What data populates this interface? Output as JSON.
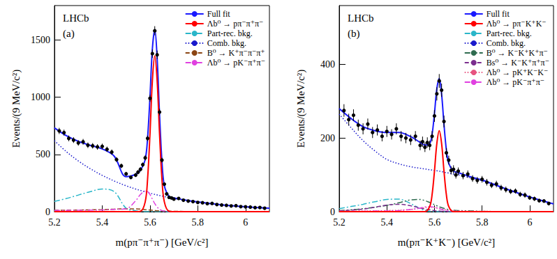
{
  "chart_data": [
    {
      "type": "scatter",
      "title": "(a)",
      "annotations": [
        "LHCb"
      ],
      "xlabel": "m(pπ⁻π⁺π⁻) [GeV/c²]",
      "ylabel": "Events/(9 MeV/c²)",
      "xlim": [
        5.2,
        6.1
      ],
      "xticks": [
        5.2,
        5.4,
        5.6,
        5.8,
        6
      ],
      "ylim": [
        0,
        1800
      ],
      "yticks": [
        0,
        500,
        1000,
        1500
      ],
      "grid": false,
      "legend": "upper right",
      "x": [
        5.2,
        5.25,
        5.3,
        5.35,
        5.4,
        5.45,
        5.5,
        5.54,
        5.56,
        5.58,
        5.59,
        5.6,
        5.61,
        5.62,
        5.63,
        5.64,
        5.65,
        5.66,
        5.68,
        5.7,
        5.75,
        5.8,
        5.9,
        6,
        6.1
      ],
      "series": [
        {
          "type": "scatter",
          "color": "#000000",
          "marker": "circle",
          "x": [
            5.22,
            5.24,
            5.26,
            5.28,
            5.3,
            5.32,
            5.34,
            5.36,
            5.38,
            5.4,
            5.42,
            5.44,
            5.46,
            5.48,
            5.5,
            5.52,
            5.54,
            5.55,
            5.56,
            5.57,
            5.58,
            5.59,
            5.6,
            5.61,
            5.62,
            5.63,
            5.64,
            5.65,
            5.66,
            5.67,
            5.68,
            5.69,
            5.7,
            5.72,
            5.74,
            5.76,
            5.78,
            5.8,
            5.82,
            5.84,
            5.86,
            5.88,
            5.9,
            5.92,
            5.94,
            5.96,
            5.98,
            6,
            6.02,
            6.04,
            6.06,
            6.08
          ],
          "values": [
            705,
            690,
            640,
            625,
            600,
            610,
            580,
            575,
            565,
            570,
            545,
            520,
            455,
            400,
            330,
            300,
            320,
            345,
            370,
            410,
            470,
            640,
            990,
            1380,
            1580,
            1370,
            870,
            450,
            240,
            155,
            125,
            120,
            110,
            115,
            100,
            92,
            88,
            80,
            78,
            70,
            72,
            62,
            58,
            55,
            50,
            52,
            44,
            42,
            40,
            35,
            36,
            30
          ],
          "errors": [
            27,
            26,
            25,
            25,
            24,
            25,
            24,
            24,
            24,
            24,
            23,
            23,
            21,
            20,
            18,
            17,
            18,
            19,
            19,
            20,
            22,
            25,
            31,
            37,
            40,
            37,
            29,
            21,
            15,
            12,
            11,
            11,
            10,
            11,
            10,
            10,
            9,
            9,
            9,
            8,
            8,
            8,
            8,
            7,
            7,
            7,
            7,
            6,
            6,
            6,
            6,
            5
          ]
        },
        {
          "name": "Full fit",
          "type": "line",
          "color": "#1a1aff",
          "line_style": "solid",
          "values": [
            732,
            663,
            614,
            579,
            548,
            485,
            306,
            326,
            362,
            457,
            645,
            1006,
            1422,
            1591,
            1338,
            848,
            440,
            228,
            133,
            120,
            100,
            85,
            60,
            43,
            31
          ]
        },
        {
          "name": "Λb⁰ → pπ⁻π⁺π⁻",
          "type": "line",
          "color": "#ff0000",
          "line_style": "solid",
          "values": [
            0,
            0,
            0,
            0,
            0,
            0,
            0,
            0,
            3,
            86,
            287,
            680,
            1144,
            1360,
            1144,
            680,
            287,
            86,
            3,
            0,
            0,
            0,
            0,
            0,
            0
          ]
        },
        {
          "name": "Part-rec. bkg.",
          "type": "line",
          "color": "#29b6c9",
          "line_style": "dashdot",
          "values": [
            90,
            115,
            145,
            175,
            198,
            175,
            30,
            8,
            2,
            0,
            0,
            0,
            0,
            0,
            0,
            0,
            0,
            0,
            0,
            0,
            0,
            0,
            0,
            0,
            0
          ]
        },
        {
          "name": "Comb. bkg.",
          "type": "line",
          "color": "#1a1acc",
          "line_style": "dotted",
          "values": [
            620,
            524,
            443,
            375,
            317,
            268,
            226,
            198,
            185,
            173,
            167,
            162,
            156,
            151,
            146,
            141,
            137,
            132,
            124,
            116,
            98,
            83,
            59,
            42,
            30
          ]
        },
        {
          "name": "B⁰ → K⁺π⁻π⁻π⁺",
          "type": "line",
          "color": "#8b4513",
          "line_style": "dashed",
          "values": [
            12,
            13,
            14,
            16,
            18,
            22,
            25,
            25,
            22,
            18,
            16,
            14,
            12,
            10,
            8,
            7,
            6,
            5,
            4,
            3,
            2,
            2,
            1,
            1,
            1
          ]
        },
        {
          "name": "Λb⁰ → pK⁻π⁺π⁻",
          "type": "line",
          "color": "#e040e0",
          "line_style": "dashdot",
          "values": [
            10,
            11,
            12,
            13,
            15,
            20,
            25,
            95,
            150,
            180,
            175,
            150,
            110,
            70,
            40,
            20,
            10,
            5,
            2,
            1,
            0,
            0,
            0,
            0,
            0
          ]
        }
      ]
    },
    {
      "type": "scatter",
      "title": "(b)",
      "annotations": [
        "LHCb"
      ],
      "xlabel": "m(pπ⁻K⁺K⁻) [GeV/c²]",
      "ylabel": "Events/(9 MeV/c²)",
      "xlim": [
        5.2,
        6.1
      ],
      "xticks": [
        5.2,
        5.4,
        5.6,
        5.8,
        6
      ],
      "ylim": [
        0,
        560
      ],
      "yticks": [
        0,
        200,
        400
      ],
      "grid": false,
      "legend": "upper right",
      "x": [
        5.2,
        5.25,
        5.3,
        5.35,
        5.4,
        5.45,
        5.5,
        5.54,
        5.56,
        5.58,
        5.59,
        5.6,
        5.61,
        5.62,
        5.63,
        5.64,
        5.65,
        5.66,
        5.68,
        5.7,
        5.75,
        5.8,
        5.9,
        6,
        6.1
      ],
      "series": [
        {
          "type": "scatter",
          "color": "#000000",
          "marker": "circle",
          "x": [
            5.22,
            5.24,
            5.26,
            5.28,
            5.3,
            5.32,
            5.34,
            5.36,
            5.38,
            5.4,
            5.42,
            5.44,
            5.46,
            5.48,
            5.5,
            5.52,
            5.54,
            5.55,
            5.56,
            5.57,
            5.58,
            5.59,
            5.6,
            5.61,
            5.62,
            5.63,
            5.64,
            5.65,
            5.66,
            5.67,
            5.68,
            5.69,
            5.7,
            5.72,
            5.74,
            5.76,
            5.78,
            5.8,
            5.82,
            5.84,
            5.86,
            5.88,
            5.9,
            5.92,
            5.94,
            5.96,
            5.98,
            6,
            6.02,
            6.04,
            6.06,
            6.08
          ],
          "values": [
            275,
            250,
            262,
            235,
            225,
            238,
            215,
            222,
            205,
            218,
            210,
            225,
            205,
            200,
            195,
            205,
            180,
            190,
            175,
            188,
            180,
            205,
            260,
            320,
            355,
            330,
            245,
            160,
            140,
            112,
            115,
            100,
            110,
            98,
            102,
            90,
            85,
            88,
            80,
            72,
            75,
            65,
            60,
            55,
            56,
            47,
            45,
            38,
            35,
            30,
            29,
            22
          ],
          "errors": [
            17,
            16,
            16,
            15,
            15,
            15,
            15,
            15,
            14,
            15,
            14,
            15,
            14,
            14,
            14,
            14,
            13,
            14,
            13,
            14,
            13,
            14,
            16,
            18,
            19,
            18,
            16,
            13,
            12,
            11,
            11,
            10,
            10,
            10,
            10,
            9,
            9,
            9,
            9,
            8,
            9,
            8,
            8,
            7,
            7,
            7,
            7,
            6,
            6,
            5,
            5,
            5
          ]
        },
        {
          "name": "Full fit",
          "type": "line",
          "color": "#1a1aff",
          "line_style": "solid",
          "values": [
            280,
            253,
            231,
            220,
            215,
            215,
            204,
            188,
            181,
            185,
            210,
            267,
            334,
            362,
            319,
            237,
            168,
            131,
            110,
            106,
            95,
            86,
            62,
            40,
            21
          ]
        },
        {
          "name": "Λb⁰ → pπ⁻K⁺K⁻",
          "type": "line",
          "color": "#ff0000",
          "line_style": "solid",
          "values": [
            0,
            0,
            0,
            0,
            0,
            0,
            0,
            0,
            0,
            14,
            46,
            110,
            185,
            220,
            185,
            110,
            46,
            14,
            0,
            0,
            0,
            0,
            0,
            0,
            0
          ]
        },
        {
          "name": "Part-rec. bkg.",
          "type": "line",
          "color": "#29b6c9",
          "line_style": "dashdot",
          "values": [
            8,
            14,
            20,
            27,
            33,
            34,
            22,
            8,
            4,
            1,
            0,
            0,
            0,
            0,
            0,
            0,
            0,
            0,
            0,
            0,
            0,
            0,
            0,
            0,
            0
          ]
        },
        {
          "name": "Comb. bkg.",
          "type": "line",
          "color": "#1a1acc",
          "line_style": "dotted",
          "values": [
            265,
            228,
            193,
            165,
            142,
            130,
            122,
            118,
            116,
            114,
            113,
            112,
            111,
            110,
            109,
            107,
            106,
            105,
            102,
            100,
            92,
            84,
            62,
            40,
            21
          ]
        },
        {
          "name": "B⁰ → K⁻K⁺K⁺π⁻",
          "type": "line",
          "color": "#2e6b4f",
          "line_style": "dashdotdot",
          "values": [
            3,
            5,
            8,
            12,
            17,
            24,
            32,
            33,
            30,
            25,
            22,
            19,
            16,
            13,
            11,
            9,
            7,
            6,
            4,
            3,
            2,
            1,
            0,
            0,
            0
          ]
        },
        {
          "name": "Bs⁰ → K⁻K⁺π⁺π⁻",
          "type": "line",
          "color": "#7b2d8e",
          "line_style": "dashed",
          "values": [
            2,
            4,
            7,
            12,
            18,
            20,
            16,
            10,
            7,
            5,
            4,
            3,
            2,
            2,
            1,
            1,
            1,
            0,
            0,
            0,
            0,
            0,
            0,
            0,
            0
          ]
        },
        {
          "name": "Λb⁰ → pK⁺K⁻K⁻",
          "type": "line",
          "color": "#e75480",
          "line_style": "dotted",
          "values": [
            1,
            1,
            2,
            2,
            3,
            4,
            6,
            9,
            11,
            12,
            12,
            11,
            10,
            9,
            7,
            6,
            5,
            4,
            3,
            2,
            1,
            1,
            0,
            0,
            0
          ]
        },
        {
          "name": "Λb⁰ → pK⁻π⁺π⁻",
          "type": "line",
          "color": "#e040e0",
          "line_style": "dashdot",
          "values": [
            1,
            1,
            1,
            2,
            2,
            3,
            6,
            10,
            13,
            14,
            13,
            12,
            10,
            8,
            6,
            4,
            3,
            2,
            1,
            1,
            0,
            0,
            0,
            0,
            0
          ]
        }
      ]
    }
  ]
}
